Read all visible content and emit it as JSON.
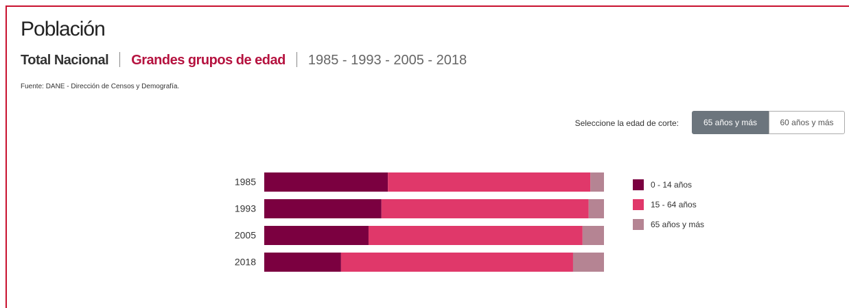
{
  "header": {
    "title": "Población",
    "subtitle": {
      "scope": "Total Nacional",
      "topic": "Grandes grupos de edad",
      "years": "1985 - 1993 - 2005 - 2018"
    },
    "source": "Fuente: DANE - Dirección de Censos y Demografía."
  },
  "controls": {
    "label": "Seleccione la edad de corte:",
    "options": [
      "65 años y más",
      "60 años y más"
    ]
  },
  "chart_data": {
    "type": "bar",
    "orientation": "horizontal",
    "stacked": true,
    "categories": [
      "1985",
      "1993",
      "2005",
      "2018"
    ],
    "xlim": [
      0,
      100
    ],
    "series": [
      {
        "name": "0 - 14 años",
        "color": "#7b0040",
        "values": [
          36.4,
          34.5,
          30.7,
          22.6
        ]
      },
      {
        "name": "15 - 64 años",
        "color": "#e0386a",
        "values": [
          59.6,
          61.0,
          63.0,
          68.3
        ]
      },
      {
        "name": "65 años y más",
        "color": "#b58493",
        "values": [
          4.0,
          4.5,
          6.3,
          9.1
        ]
      }
    ]
  }
}
